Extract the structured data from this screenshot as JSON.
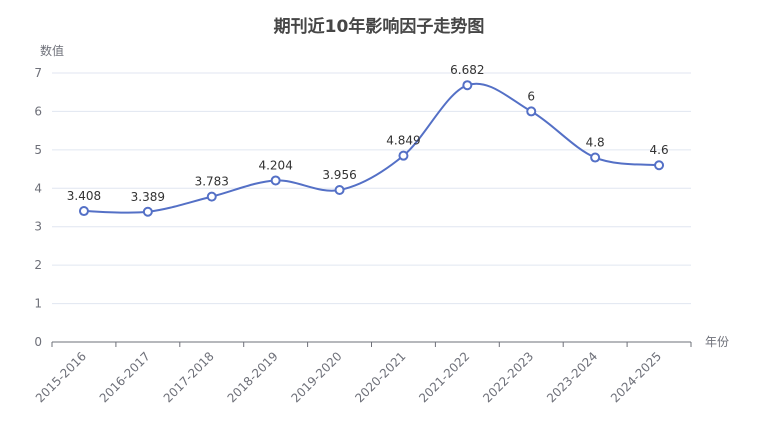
{
  "chart_data": {
    "type": "line",
    "title": "期刊近10年影响因子走势图",
    "xlabel": "年份",
    "ylabel": "数值",
    "categories": [
      "2015-2016",
      "2016-2017",
      "2017-2018",
      "2018-2019",
      "2019-2020",
      "2020-2021",
      "2021-2022",
      "2022-2023",
      "2023-2024",
      "2024-2025"
    ],
    "series": [
      {
        "values": [
          3.408,
          3.389,
          3.783,
          4.204,
          3.956,
          4.849,
          6.682,
          6,
          4.8,
          4.6
        ]
      }
    ],
    "ylim": [
      0,
      7
    ],
    "yticks": [
      0,
      1,
      2,
      3,
      4,
      5,
      6,
      7
    ],
    "grid": true,
    "smooth": true,
    "line_color": "#5470c6",
    "point_fill": "#ffffff",
    "grid_color": "#e0e6f1",
    "axis_color": "#6e7079"
  }
}
